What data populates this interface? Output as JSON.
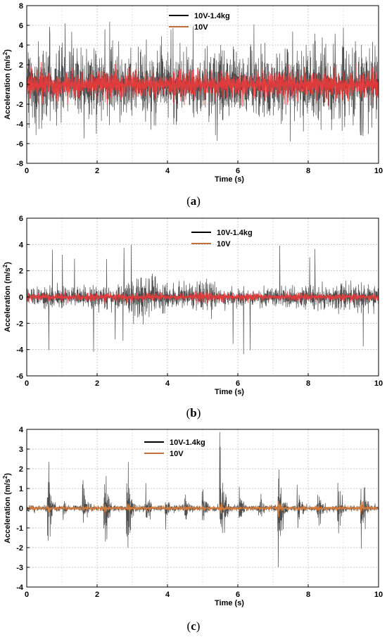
{
  "chart_data": [
    {
      "type": "line",
      "caption_letter": "a",
      "xlabel": "Time (s)",
      "ylabel_base": "Acceleration (m/s",
      "ylabel_sup": "2",
      "ylabel_tail": ")",
      "xlim": [
        0,
        10
      ],
      "ylim": [
        -8,
        8
      ],
      "xticks": [
        0,
        2,
        4,
        6,
        8,
        10
      ],
      "yticks": [
        -8,
        -6,
        -4,
        -2,
        0,
        2,
        4,
        6,
        8
      ],
      "grid": true,
      "legend_position": "top-right",
      "series": [
        {
          "name": "10V-1.4kg",
          "color": "#444444",
          "legend_color": "#000000",
          "envelope": [
            [
              0,
              4.0
            ],
            [
              10,
              4.0
            ]
          ],
          "peak_max": 6.6,
          "peak_min": -5.8
        },
        {
          "name": "10V",
          "color": "#ee3b3b",
          "legend_color": "#c0703a",
          "envelope": [
            [
              0,
              1.6
            ],
            [
              10,
              1.6
            ]
          ]
        }
      ]
    },
    {
      "type": "line",
      "caption_letter": "b",
      "xlabel": "Time (s)",
      "ylabel_base": "Acceleration (m/s",
      "ylabel_sup": "2",
      "ylabel_tail": ")",
      "xlim": [
        0,
        10
      ],
      "ylim": [
        -6,
        6
      ],
      "xticks": [
        0,
        2,
        4,
        6,
        8,
        10
      ],
      "yticks": [
        -6,
        -4,
        -2,
        0,
        2,
        4,
        6
      ],
      "grid": true,
      "legend_position": "top-right",
      "series": [
        {
          "name": "10V-1.4kg",
          "color": "#444444",
          "legend_color": "#000000",
          "envelope": [
            [
              0,
              0.8
            ],
            [
              1,
              0.9
            ],
            [
              2,
              0.8
            ],
            [
              2.6,
              1.2
            ],
            [
              3.0,
              2.0
            ],
            [
              3.5,
              1.8
            ],
            [
              4.0,
              1.2
            ],
            [
              4.5,
              0.9
            ],
            [
              5.0,
              1.4
            ],
            [
              5.5,
              0.9
            ],
            [
              6.5,
              0.7
            ],
            [
              7.5,
              0.9
            ],
            [
              8.5,
              1.0
            ],
            [
              9.5,
              1.1
            ],
            [
              10,
              0.9
            ]
          ],
          "peak_max": 4.1,
          "peak_min": -4.5
        },
        {
          "name": "10V",
          "color": "#ee3b3b",
          "legend_color": "#c0703a",
          "envelope": [
            [
              0,
              0.3
            ],
            [
              4.5,
              0.35
            ],
            [
              5.0,
              0.6
            ],
            [
              5.5,
              0.35
            ],
            [
              10,
              0.35
            ]
          ]
        }
      ]
    },
    {
      "type": "line",
      "caption_letter": "c",
      "xlabel": "Time (s)",
      "ylabel_base": "Acceleration (m/s",
      "ylabel_sup": "2",
      "ylabel_tail": ")",
      "xlim": [
        0,
        10
      ],
      "ylim": [
        -4,
        4
      ],
      "xticks": [
        0,
        2,
        4,
        6,
        8,
        10
      ],
      "yticks": [
        -4,
        -3,
        -2,
        -1,
        0,
        1,
        2,
        3,
        4
      ],
      "grid": true,
      "legend_position": "top-center",
      "bursts": [
        0.6,
        1.05,
        1.6,
        2.2,
        2.85,
        3.4,
        3.95,
        4.5,
        5.0,
        5.5,
        6.05,
        6.6,
        7.15,
        7.7,
        8.25,
        8.85,
        9.5
      ],
      "burst_heights": [
        2.4,
        0.6,
        1.4,
        3.1,
        2.9,
        1.0,
        0.9,
        1.1,
        1.6,
        3.3,
        1.2,
        1.4,
        3.2,
        1.3,
        1.4,
        1.5,
        2.8
      ],
      "series": [
        {
          "name": "10V-1.4kg",
          "color": "#444444",
          "legend_color": "#000000"
        },
        {
          "name": "10V",
          "color": "#e0803a",
          "legend_color": "#c0703a"
        }
      ]
    }
  ]
}
